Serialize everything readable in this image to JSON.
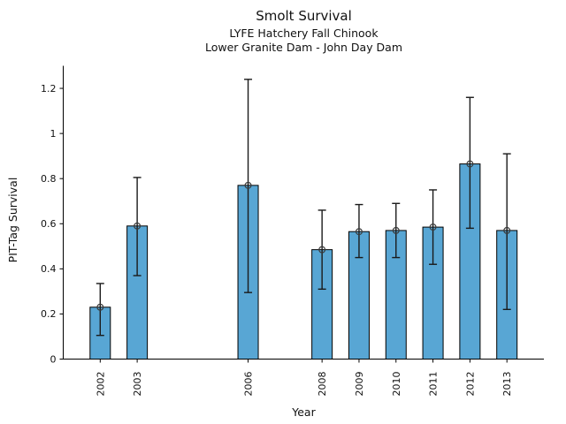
{
  "figure": {
    "title": "Smolt Survival",
    "subtitle1": "LYFE Hatchery Fall Chinook",
    "subtitle2": "Lower Granite Dam - John Day Dam"
  },
  "chart_data": {
    "type": "bar",
    "title": "Smolt Survival",
    "subtitle_lines": [
      "LYFE Hatchery Fall Chinook",
      "Lower Granite Dam - John Day Dam"
    ],
    "xlabel": "Year",
    "ylabel": "PIT-Tag Survival",
    "categories": [
      2002,
      2003,
      2006,
      2008,
      2009,
      2010,
      2011,
      2012,
      2013
    ],
    "values": [
      0.23,
      0.59,
      0.77,
      0.485,
      0.565,
      0.57,
      0.585,
      0.865,
      0.57
    ],
    "error_low": [
      0.105,
      0.37,
      0.295,
      0.31,
      0.45,
      0.45,
      0.42,
      0.58,
      0.22
    ],
    "error_high": [
      0.335,
      0.805,
      1.24,
      0.66,
      0.685,
      0.69,
      0.75,
      1.16,
      0.91
    ],
    "yticks": [
      0,
      0.2,
      0.4,
      0.6,
      0.8,
      1.0,
      1.2
    ],
    "ytick_labels": [
      "0",
      "0.2",
      "0.4",
      "0.6",
      "0.8",
      "1",
      "1.2"
    ],
    "ylim": [
      0,
      1.3
    ],
    "xlim": [
      2001,
      2014
    ],
    "grid": false,
    "legend": null,
    "marker": "open-circle",
    "bar_color": "#58a6d4",
    "bar_edge_color": "#000000",
    "error_color": "#1a1a1a",
    "marker_color": "#3a3a3a"
  }
}
